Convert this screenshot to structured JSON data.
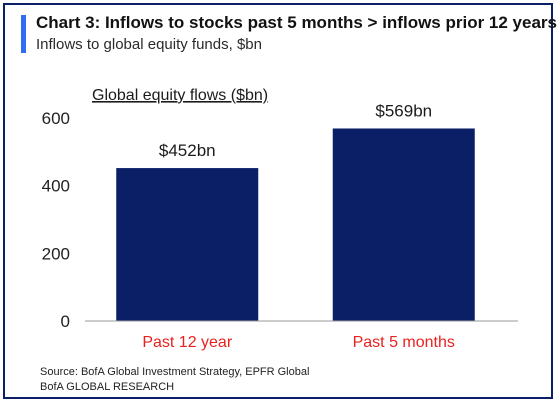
{
  "header": {
    "title": "Chart 3: Inflows to stocks past 5 months > inflows prior 12 years",
    "subtitle": "Inflows to global equity funds, $bn"
  },
  "footer": {
    "source": "Source:  BofA Global Investment Strategy, EPFR Global",
    "credit": "BofA GLOBAL RESEARCH"
  },
  "colors": {
    "bar": "#0b1f66",
    "category_label": "#e8211f",
    "accent": "#2f6df6"
  },
  "chart_data": {
    "type": "bar",
    "title": "Chart 3: Inflows to stocks past 5 months > inflows prior 12 years",
    "subtitle": "Inflows to global equity funds, $bn",
    "ylabel": "Global equity flows ($bn)",
    "xlabel": "",
    "categories": [
      "Past 12 year",
      "Past 5 months"
    ],
    "values": [
      452,
      569
    ],
    "data_labels": [
      "$452bn",
      "$569bn"
    ],
    "ylim": [
      0,
      600
    ],
    "yticks": [
      0,
      200,
      400,
      600
    ],
    "grid": false,
    "legend": "none"
  }
}
